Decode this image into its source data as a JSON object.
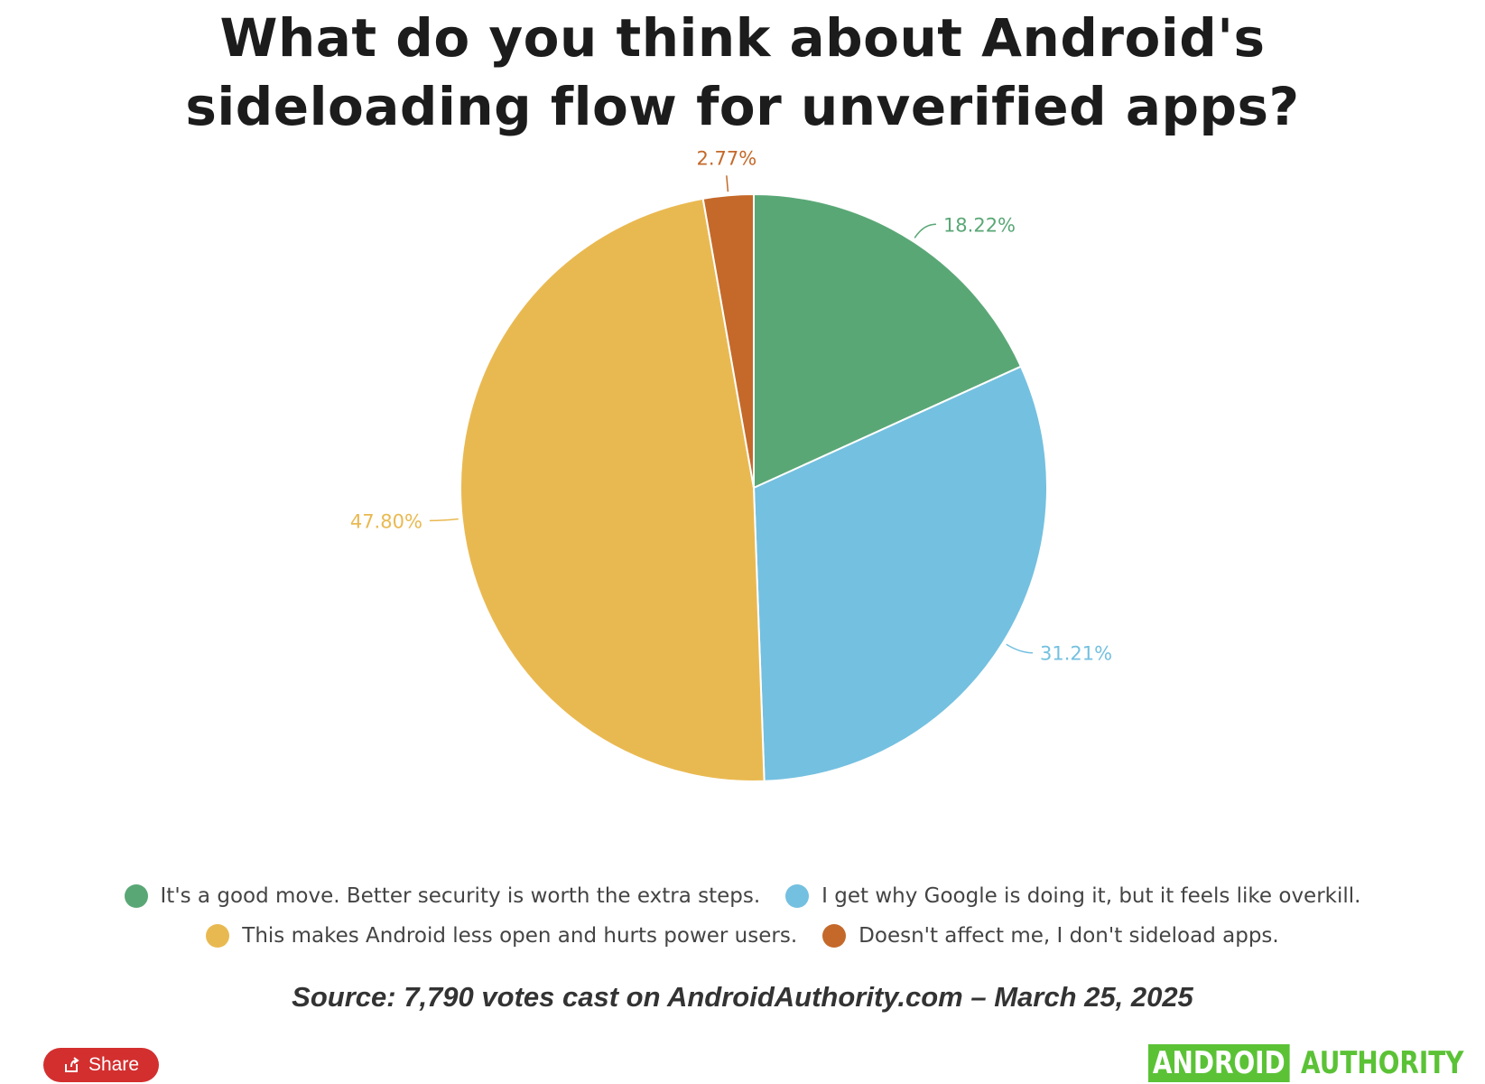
{
  "title_lines": [
    "What do you think about Android's",
    "sideloading flow for unverified apps?"
  ],
  "chart_data": {
    "type": "pie",
    "slices": [
      {
        "label": "It's a good move. Better security is worth the extra steps.",
        "value": 18.22,
        "display": "18.22%",
        "color": "#5aa776"
      },
      {
        "label": "I get why Google is doing it, but it feels like overkill.",
        "value": 31.21,
        "display": "31.21%",
        "color": "#74c0e0"
      },
      {
        "label": "This makes Android less open and hurts power users.",
        "value": 47.8,
        "display": "47.80%",
        "color": "#e9b951"
      },
      {
        "label": "Doesn't affect me, I don't sideload apps.",
        "value": 2.77,
        "display": "2.77%",
        "color": "#c4692a"
      }
    ],
    "legend_position": "bottom"
  },
  "source": "Source: 7,790 votes cast on AndroidAuthority.com – March 25, 2025",
  "share_label": "Share",
  "logo": {
    "part1": "ANDROID",
    "part2": "AUTHORITY",
    "color": "#5bc236"
  }
}
